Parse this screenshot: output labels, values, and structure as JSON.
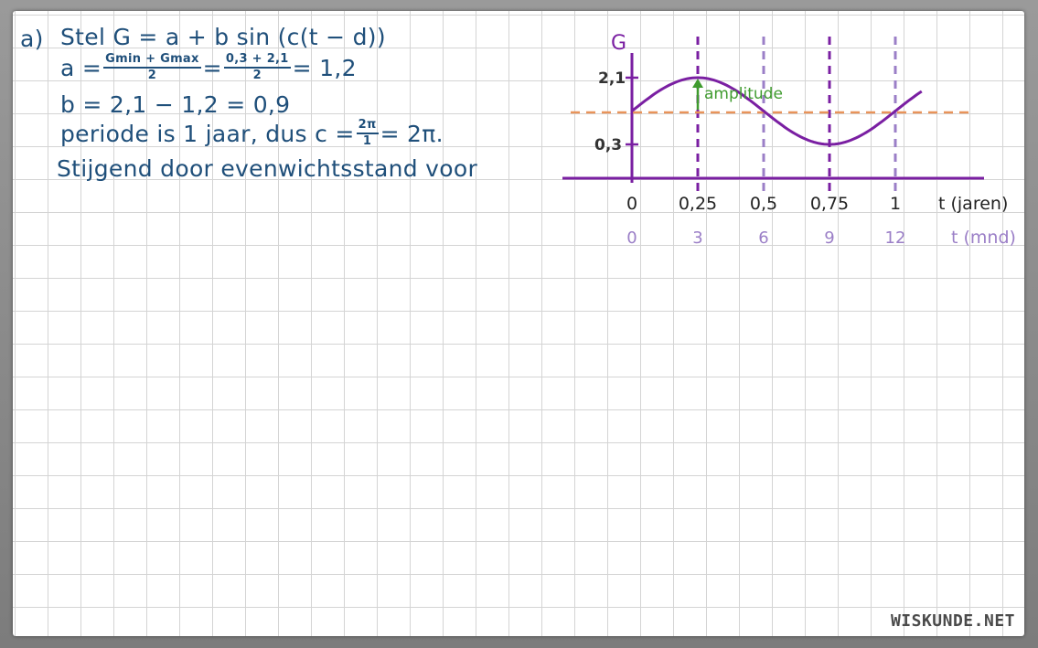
{
  "notes": {
    "marker": "a)",
    "line1": "Stel  G = a + b sin (c(t − d))",
    "line2_a": "a =",
    "line2_frac1_num": "Gmin + Gmax",
    "line2_frac1_den": "2",
    "line2_eq": "=",
    "line2_frac2_num": "0,3 + 2,1",
    "line2_frac2_den": "2",
    "line2_result": "= 1,2",
    "line3": "b = 2,1 − 1,2 = 0,9",
    "line4_a": "periode is 1 jaar, dus  c =",
    "line4_frac_num": "2π",
    "line4_frac_den": "1",
    "line4_b": "= 2π.",
    "line5": "Stijgend door evenwichtsstand voor"
  },
  "graph": {
    "y_axis_label": "G",
    "y_tick_high": "2,1",
    "y_tick_low": "0,3",
    "amplitude_label": "amplitude",
    "x_axis_label_years": "t (jaren)",
    "x_axis_label_months": "t (mnd)",
    "x_ticks_years": [
      "0",
      "0,25",
      "0,5",
      "0,75",
      "1"
    ],
    "x_ticks_months": [
      "0",
      "3",
      "6",
      "9",
      "12"
    ],
    "colors": {
      "curve": "#7a1fa2",
      "axis": "#7a1fa2",
      "dashed_lines": "#9b7fc7",
      "equilibrium": "#e8935a",
      "amplitude": "#3f9b2e",
      "month_labels": "#9b7fc7"
    }
  },
  "chart_data": {
    "type": "line",
    "title": "",
    "xlabel": "t (jaren)",
    "ylabel": "G",
    "series": [
      {
        "x": [
          0,
          0.125,
          0.25,
          0.375,
          0.5,
          0.625,
          0.75,
          0.875,
          1,
          1.1
        ],
        "values": [
          1.2,
          1.84,
          2.1,
          1.84,
          1.2,
          0.56,
          0.3,
          0.56,
          1.2,
          1.73
        ]
      }
    ],
    "equilibrium": 1.2,
    "xlim": [
      0,
      1
    ],
    "y_ticks": [
      0.3,
      2.1
    ],
    "grid": true
  },
  "watermark": "WISKUNDE.NET"
}
